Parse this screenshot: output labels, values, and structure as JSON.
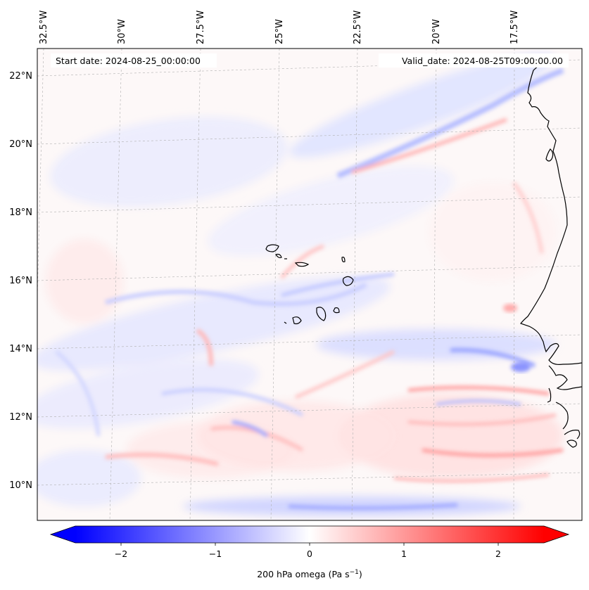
{
  "header": {
    "start_date": "Start date: 2024-08-25_00:00:00",
    "valid_date": "Valid_date: 2024-08-25T09:00:00.00"
  },
  "axes": {
    "lon_labels": [
      "32.5°W",
      "30°W",
      "27.5°W",
      "25°W",
      "22.5°W",
      "20°W",
      "17.5°W"
    ],
    "lat_labels": [
      "22°N",
      "20°N",
      "18°N",
      "16°N",
      "14°N",
      "12°N",
      "10°N"
    ]
  },
  "colorbar": {
    "label": "200 hPa omega (Pa s",
    "label_exponent": "−1",
    "label_close": ")",
    "tick_labels": [
      "−2",
      "−1",
      "0",
      "1",
      "2"
    ],
    "range": [
      -2.6,
      2.6
    ],
    "cmap": [
      "#0000ff",
      "#ffffff",
      "#ff0000"
    ],
    "extend": "both"
  },
  "colors": {
    "negative": "#0000ff",
    "positive": "#ff0000",
    "coastline": "#000000",
    "gridline": "#b0b0b0"
  }
}
